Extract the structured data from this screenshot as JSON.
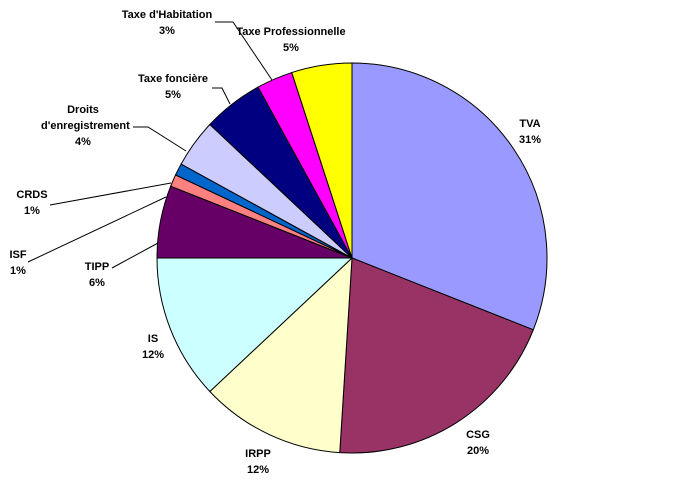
{
  "chart_data": {
    "type": "pie",
    "categories": [
      "TVA",
      "CSG",
      "IRPP",
      "IS",
      "TIPP",
      "ISF",
      "CRDS",
      "Droits d'enregistrement",
      "Taxe foncière",
      "Taxe d'Habitation",
      "Taxe Professionnelle"
    ],
    "values": [
      31,
      20,
      12,
      12,
      6,
      1,
      1,
      4,
      5,
      3,
      5
    ],
    "value_labels": [
      "31%",
      "20%",
      "12%",
      "12%",
      "6%",
      "1%",
      "1%",
      "4%",
      "5%",
      "3%",
      "5%"
    ],
    "colors": [
      "#9999ff",
      "#993366",
      "#ffffcc",
      "#ccffff",
      "#660066",
      "#ff8080",
      "#0066cc",
      "#ccccff",
      "#000080",
      "#ff00ff",
      "#ffff00"
    ]
  }
}
